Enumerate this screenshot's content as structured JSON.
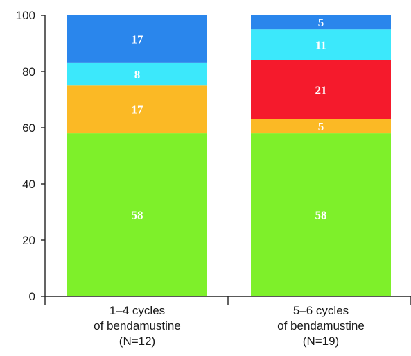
{
  "chart_data": {
    "type": "bar",
    "stacked": true,
    "categories": [
      [
        "1–4 cycles",
        "of bendamustine",
        "(N=12)"
      ],
      [
        "5–6 cycles",
        "of bendamustine",
        "(N=19)"
      ]
    ],
    "ylim": [
      0,
      100
    ],
    "yticks": [
      "0",
      "20",
      "40",
      "60",
      "80",
      "100"
    ],
    "grid": false,
    "legend": "none",
    "series": [
      {
        "color": "#7ef02a",
        "values": [
          58,
          58
        ]
      },
      {
        "color": "#fbb925",
        "values": [
          17,
          5
        ]
      },
      {
        "color": "#f51a2c",
        "values": [
          0,
          21
        ]
      },
      {
        "color": "#3ce8fb",
        "values": [
          8,
          11
        ]
      },
      {
        "color": "#2a86ec",
        "values": [
          17,
          5
        ]
      }
    ]
  }
}
